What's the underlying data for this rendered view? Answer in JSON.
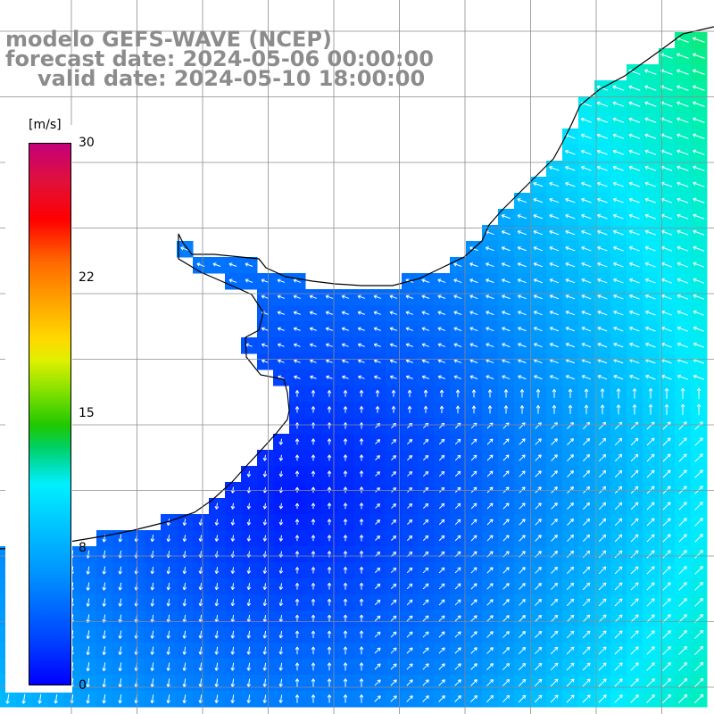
{
  "title": {
    "line1": "modelo GEFS-WAVE (NCEP)",
    "line2": "forecast date: 2024-05-06 00:00:00",
    "line3": "valid date: 2024-05-10 18:00:00"
  },
  "colorbar": {
    "unit": "[m/s]",
    "tick_labels": [
      "30",
      "22",
      "15",
      "8",
      "0"
    ],
    "tick_values": [
      30,
      22,
      15,
      8,
      0
    ],
    "min": 0,
    "max": 30
  },
  "map": {
    "field": "wind speed and direction",
    "ocean_color": "#1f6bff",
    "land_color": "#ffffff",
    "grid_color": "#8c8c8c",
    "arrow_color": "#ffffff"
  }
}
